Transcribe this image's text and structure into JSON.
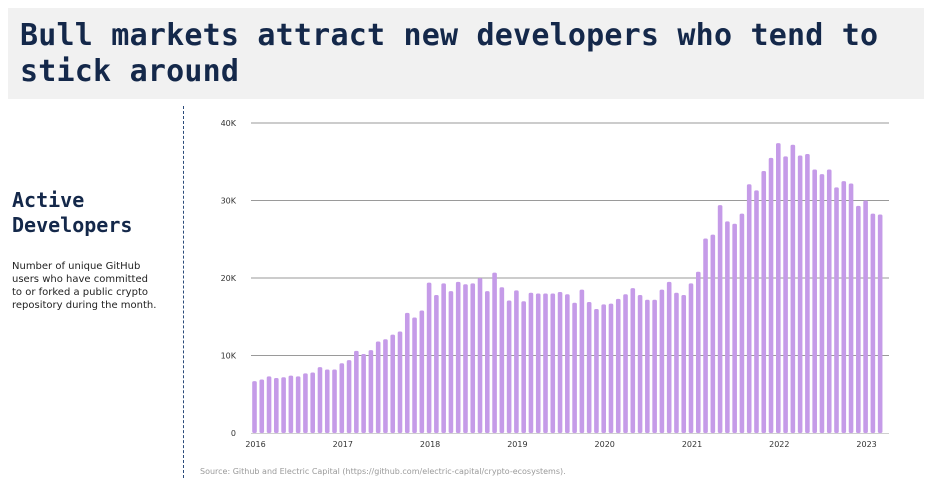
{
  "header": {
    "title": "Bull markets attract new developers who tend to stick around"
  },
  "sidebar": {
    "heading_line1": "Active",
    "heading_line2": "Developers",
    "description": "Number of unique GitHub users who have committed to or forked a public crypto repository during the month."
  },
  "footer": {
    "source": "Source: Github and Electric Capital (https://github.com/electric-capital/crypto-ecosystems)."
  },
  "colors": {
    "bar": "#c59be8",
    "gridline": "#9a9a9a",
    "title": "#14284a",
    "title_band": "#f1f1f1"
  },
  "chart_data": {
    "type": "bar",
    "title": "",
    "xlabel": "",
    "ylabel": "",
    "ylim": [
      0,
      40000
    ],
    "yticks": [
      {
        "value": 0,
        "label": "0"
      },
      {
        "value": 10000,
        "label": "10K"
      },
      {
        "value": 20000,
        "label": "20K"
      },
      {
        "value": 30000,
        "label": "30K"
      },
      {
        "value": 40000,
        "label": "40K"
      }
    ],
    "xtick_labels": [
      "2016",
      "2017",
      "2018",
      "2019",
      "2020",
      "2021",
      "2022",
      "2023"
    ],
    "grid": true,
    "legend": "none",
    "start_month": "2016-01",
    "values": [
      6700,
      6900,
      7300,
      7100,
      7200,
      7400,
      7300,
      7700,
      7800,
      8500,
      8200,
      8200,
      9000,
      9400,
      10600,
      10200,
      10700,
      11800,
      12100,
      12700,
      13100,
      15500,
      14900,
      15800,
      19400,
      17800,
      19300,
      18300,
      19500,
      19200,
      19300,
      20000,
      18300,
      20700,
      18800,
      17100,
      18400,
      17000,
      18100,
      18000,
      18000,
      18000,
      18200,
      17900,
      16800,
      18500,
      16900,
      16000,
      16600,
      16700,
      17300,
      17900,
      18700,
      17800,
      17200,
      17200,
      18500,
      19500,
      18100,
      17800,
      19300,
      20800,
      25100,
      25600,
      29400,
      27300,
      27000,
      28300,
      32100,
      31300,
      33800,
      35500,
      37400,
      35700,
      37200,
      35800,
      36000,
      34000,
      33400,
      34000,
      31700,
      32500,
      32200,
      29300,
      30000,
      28300,
      28200
    ]
  }
}
